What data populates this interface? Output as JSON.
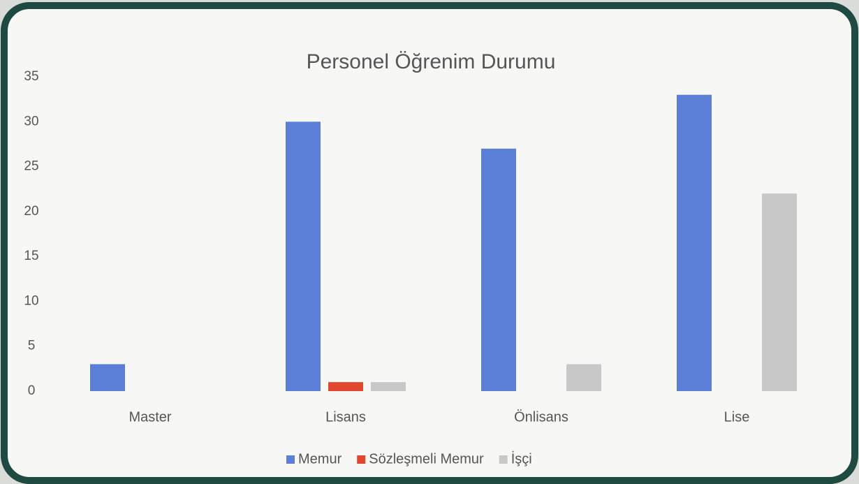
{
  "chart_data": {
    "type": "bar",
    "title": "Personel Öğrenim Durumu",
    "categories": [
      "Master",
      "Lisans",
      "Önlisans",
      "Lise"
    ],
    "series": [
      {
        "name": "Memur",
        "color": "#5b7fd6",
        "values": [
          3,
          30,
          27,
          33
        ]
      },
      {
        "name": "Sözleşmeli Memur",
        "color": "#e0472e",
        "values": [
          0,
          1,
          0,
          0
        ]
      },
      {
        "name": "İşçi",
        "color": "#c8c8c8",
        "values": [
          0,
          1,
          3,
          22
        ]
      }
    ],
    "ylim": [
      0,
      35
    ],
    "yticks": [
      0,
      5,
      10,
      15,
      20,
      25,
      30,
      35
    ],
    "grid": false,
    "legend": "bottom"
  }
}
